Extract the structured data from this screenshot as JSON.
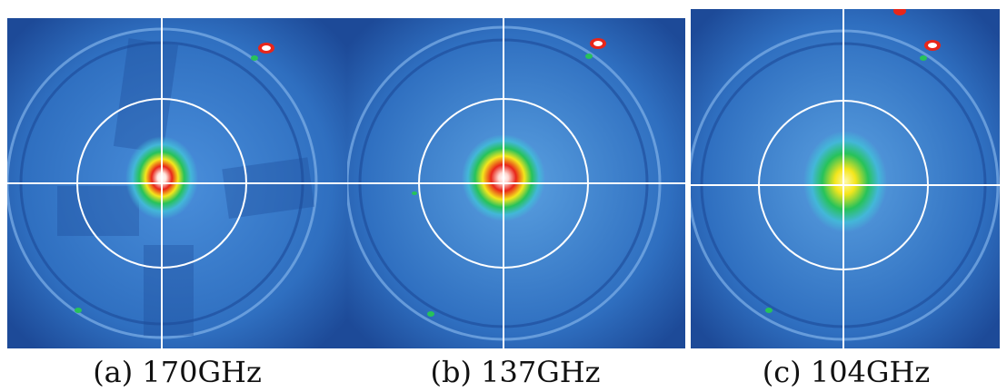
{
  "figure": {
    "panels": [
      {
        "id": "a",
        "caption": "(a) 170GHz",
        "spot_peak": "white",
        "spot_ring": "red"
      },
      {
        "id": "b",
        "caption": "(b) 137GHz",
        "spot_peak": "white",
        "spot_ring": "red"
      },
      {
        "id": "c",
        "caption": "(c) 104GHz",
        "spot_peak": "yellow",
        "spot_ring": "green"
      }
    ],
    "colors": {
      "background_blue": "#2f6fc0",
      "dark_blue": "#1d3f8a",
      "overlay_white": "#ffffff",
      "hot_red": "#e8261a",
      "hot_yellow": "#f4e61c",
      "hot_green": "#27c25a"
    }
  }
}
